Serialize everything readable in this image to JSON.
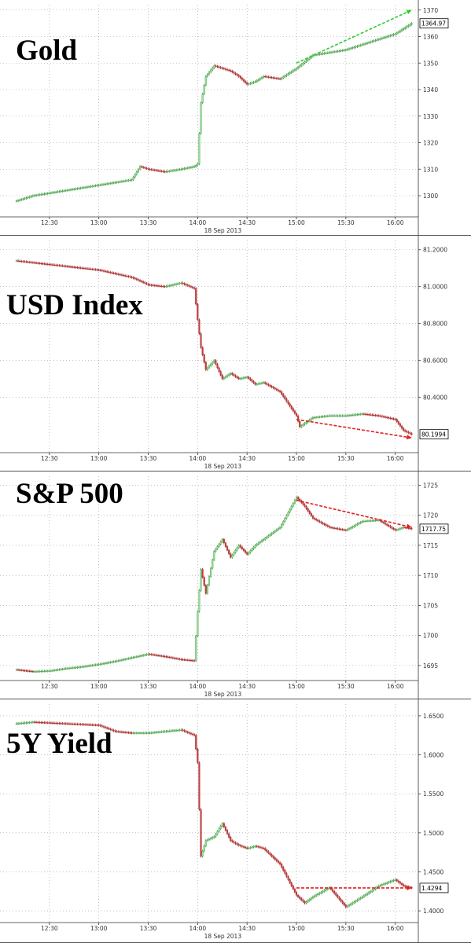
{
  "chart_data": [
    {
      "type": "candlestick",
      "title": "Gold",
      "date_label": "18 Sep 2013",
      "x_ticks": [
        "12:30",
        "13:00",
        "13:30",
        "14:00",
        "14:30",
        "15:00",
        "15:30",
        "16:00"
      ],
      "y_ticks": [
        "1300",
        "1310",
        "1320",
        "1330",
        "1340",
        "1350",
        "1360",
        "1370"
      ],
      "ylim": [
        1292,
        1372
      ],
      "last_value": "1364.97",
      "trend_arrow": {
        "color": "#2ecc2e",
        "from": [
          "15:00",
          1350
        ],
        "to": [
          "16:10",
          1370
        ]
      },
      "series": {
        "x": [
          "12:10",
          "12:20",
          "12:30",
          "12:40",
          "12:50",
          "13:00",
          "13:10",
          "13:20",
          "13:25",
          "13:30",
          "13:40",
          "13:50",
          "13:58",
          "14:00",
          "14:02",
          "14:05",
          "14:10",
          "14:20",
          "14:25",
          "14:30",
          "14:35",
          "14:40",
          "14:50",
          "15:00",
          "15:10",
          "15:20",
          "15:30",
          "15:40",
          "15:50",
          "16:00",
          "16:05",
          "16:10"
        ],
        "values": [
          1298,
          1300,
          1301,
          1302,
          1303,
          1304,
          1305,
          1306,
          1311,
          1310,
          1309,
          1310,
          1311,
          1312,
          1335,
          1345,
          1349,
          1347,
          1345,
          1342,
          1343,
          1345,
          1344,
          1348,
          1353,
          1354,
          1355,
          1357,
          1359,
          1361,
          1363,
          1364.97
        ]
      }
    },
    {
      "type": "candlestick",
      "title": "USD Index",
      "date_label": "18 Sep 2013",
      "x_ticks": [
        "12:30",
        "13:00",
        "13:30",
        "14:00",
        "14:30",
        "15:00",
        "15:30",
        "16:00"
      ],
      "y_ticks": [
        "80.4000",
        "80.6000",
        "80.8000",
        "81.0000",
        "81.2000"
      ],
      "ylim": [
        80.1,
        81.25
      ],
      "last_value": "80.1994",
      "trend_arrow": {
        "color": "#e02020",
        "from": [
          "15:00",
          80.28
        ],
        "to": [
          "16:10",
          80.18
        ]
      },
      "series": {
        "x": [
          "12:10",
          "12:20",
          "12:30",
          "12:40",
          "12:50",
          "13:00",
          "13:10",
          "13:20",
          "13:30",
          "13:40",
          "13:50",
          "13:58",
          "14:00",
          "14:02",
          "14:05",
          "14:10",
          "14:15",
          "14:20",
          "14:25",
          "14:30",
          "14:35",
          "14:40",
          "14:50",
          "15:00",
          "15:02",
          "15:10",
          "15:20",
          "15:30",
          "15:40",
          "15:50",
          "16:00",
          "16:05",
          "16:10"
        ],
        "values": [
          81.14,
          81.13,
          81.12,
          81.11,
          81.1,
          81.09,
          81.07,
          81.05,
          81.01,
          81.0,
          81.02,
          80.99,
          80.82,
          80.67,
          80.55,
          80.6,
          80.5,
          80.53,
          80.5,
          80.51,
          80.47,
          80.48,
          80.43,
          80.3,
          80.24,
          80.29,
          80.3,
          80.3,
          80.31,
          80.3,
          80.28,
          80.22,
          80.1994
        ]
      }
    },
    {
      "type": "candlestick",
      "title": "S&P 500",
      "date_label": "18 Sep 2013",
      "x_ticks": [
        "12:30",
        "13:00",
        "13:30",
        "14:00",
        "14:30",
        "15:00",
        "15:30",
        "16:00"
      ],
      "y_ticks": [
        "1695",
        "1700",
        "1705",
        "1710",
        "1715",
        "1720",
        "1725"
      ],
      "ylim": [
        1692.5,
        1726.5
      ],
      "last_value": "1717.75",
      "trend_arrow": {
        "color": "#e02020",
        "from": [
          "15:00",
          1722.5
        ],
        "to": [
          "16:10",
          1718
        ]
      },
      "series": {
        "x": [
          "12:10",
          "12:20",
          "12:30",
          "12:40",
          "12:50",
          "13:00",
          "13:10",
          "13:20",
          "13:30",
          "13:40",
          "13:50",
          "13:58",
          "14:00",
          "14:02",
          "14:05",
          "14:10",
          "14:15",
          "14:20",
          "14:25",
          "14:30",
          "14:35",
          "14:40",
          "14:50",
          "15:00",
          "15:05",
          "15:10",
          "15:20",
          "15:30",
          "15:40",
          "15:50",
          "16:00",
          "16:05",
          "16:10"
        ],
        "values": [
          1694.3,
          1694.0,
          1694.1,
          1694.5,
          1694.8,
          1695.2,
          1695.7,
          1696.3,
          1696.9,
          1696.5,
          1696.0,
          1695.8,
          1704,
          1711,
          1707,
          1714,
          1716,
          1713,
          1715,
          1713.5,
          1715,
          1716,
          1718,
          1723,
          1721.5,
          1719.5,
          1718,
          1717.5,
          1719,
          1719.2,
          1717.5,
          1718,
          1717.75
        ]
      }
    },
    {
      "type": "candlestick",
      "title": "5Y Yield",
      "date_label": "18 Sep 2013",
      "x_ticks": [
        "12:30",
        "13:00",
        "13:30",
        "14:00",
        "14:30",
        "15:00",
        "15:30",
        "16:00"
      ],
      "y_ticks": [
        "1.4000",
        "1.4500",
        "1.5000",
        "1.5500",
        "1.6000",
        "1.6500"
      ],
      "ylim": [
        1.385,
        1.665
      ],
      "last_value": "1.4294",
      "trend_arrow": {
        "color": "#e02020",
        "from": [
          "15:00",
          1.4294
        ],
        "to": [
          "16:10",
          1.4294
        ]
      },
      "series": {
        "x": [
          "12:10",
          "12:20",
          "12:30",
          "12:40",
          "12:50",
          "13:00",
          "13:10",
          "13:20",
          "13:30",
          "13:40",
          "13:50",
          "13:58",
          "14:00",
          "14:02",
          "14:05",
          "14:10",
          "14:15",
          "14:20",
          "14:25",
          "14:30",
          "14:35",
          "14:40",
          "14:50",
          "15:00",
          "15:05",
          "15:10",
          "15:20",
          "15:30",
          "15:40",
          "15:50",
          "16:00",
          "16:05",
          "16:10"
        ],
        "values": [
          1.64,
          1.642,
          1.641,
          1.64,
          1.639,
          1.638,
          1.63,
          1.628,
          1.628,
          1.63,
          1.632,
          1.625,
          1.59,
          1.47,
          1.49,
          1.495,
          1.512,
          1.49,
          1.484,
          1.48,
          1.483,
          1.48,
          1.46,
          1.42,
          1.41,
          1.418,
          1.43,
          1.405,
          1.418,
          1.432,
          1.44,
          1.432,
          1.4294
        ]
      }
    }
  ]
}
